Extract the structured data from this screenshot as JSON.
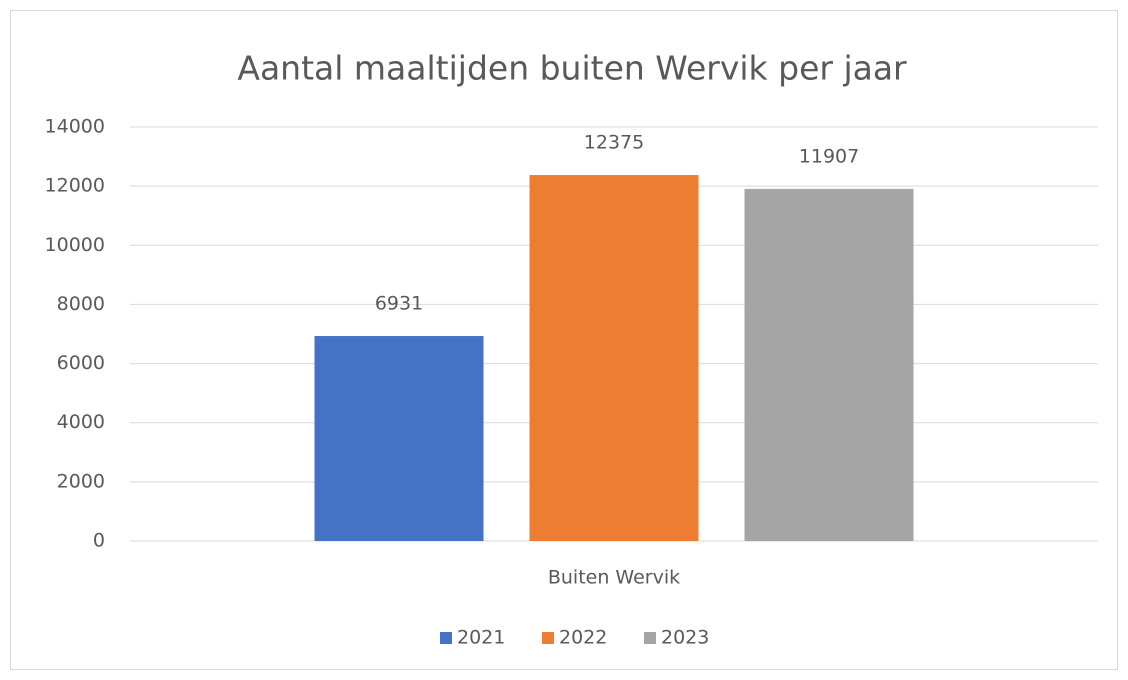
{
  "chart_data": {
    "type": "bar",
    "title": "Aantal maaltijden buiten Wervik per jaar",
    "categories": [
      "Buiten Wervik"
    ],
    "series": [
      {
        "name": "2021",
        "color": "#4472c4",
        "values": [
          6931
        ]
      },
      {
        "name": "2022",
        "color": "#ed7d31",
        "values": [
          12375
        ]
      },
      {
        "name": "2023",
        "color": "#a5a5a5",
        "values": [
          11907
        ]
      }
    ],
    "ylim": [
      0,
      14000
    ],
    "yticks": [
      0,
      2000,
      4000,
      6000,
      8000,
      10000,
      12000,
      14000
    ],
    "grid": true,
    "legend": "bottom"
  }
}
